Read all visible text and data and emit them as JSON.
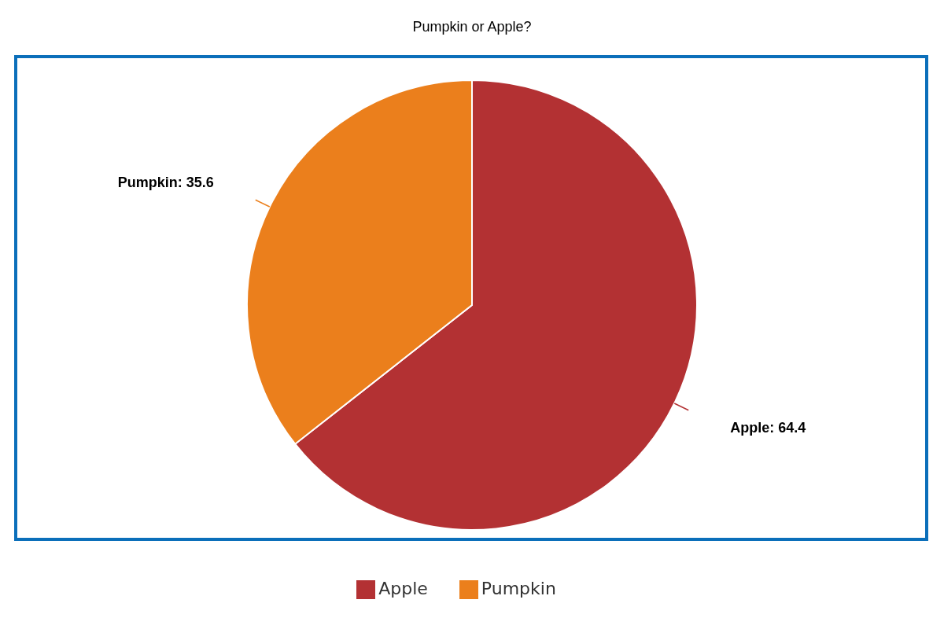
{
  "chart_data": {
    "type": "pie",
    "title": "Pumpkin or Apple?",
    "categories": [
      "Apple",
      "Pumpkin"
    ],
    "values": [
      64.4,
      35.6
    ],
    "colors": [
      "#b33133",
      "#eb7f1c"
    ],
    "value_labels": [
      "Apple: 64.4",
      "Pumpkin: 35.6"
    ],
    "legend": "bottom"
  }
}
